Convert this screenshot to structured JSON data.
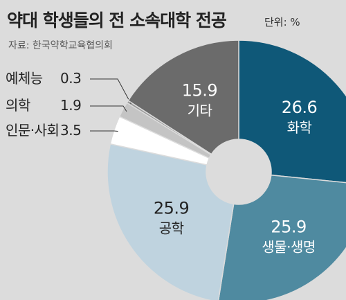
{
  "header": {
    "title": "약대 학생들의 전 소속대학 전공",
    "unit": "단위: %",
    "source": "자료: 한국약학교육협의회"
  },
  "chart_data": {
    "type": "pie",
    "slices": [
      {
        "label": "화학",
        "value": 26.6,
        "value_text": "26.6",
        "color": "#0f5878",
        "text_color": "#ffffff"
      },
      {
        "label": "생물·생명",
        "value": 25.9,
        "value_text": "25.9",
        "color": "#4f8aa0",
        "text_color": "#ffffff"
      },
      {
        "label": "공학",
        "value": 25.9,
        "value_text": "25.9",
        "color": "#bfd3df",
        "text_color": "#222222"
      },
      {
        "label": "인문·사회",
        "value": 3.5,
        "value_text": "3.5",
        "color": "#ffffff",
        "text_color": "#222222"
      },
      {
        "label": "의학",
        "value": 1.9,
        "value_text": "1.9",
        "color": "#c4c4c4",
        "text_color": "#222222"
      },
      {
        "label": "예체능",
        "value": 0.3,
        "value_text": "0.3",
        "color": "#9a9a9a",
        "text_color": "#222222"
      },
      {
        "label": "기타",
        "value": 15.9,
        "value_text": "15.9",
        "color": "#6b6b6b",
        "text_color": "#ffffff"
      }
    ]
  }
}
